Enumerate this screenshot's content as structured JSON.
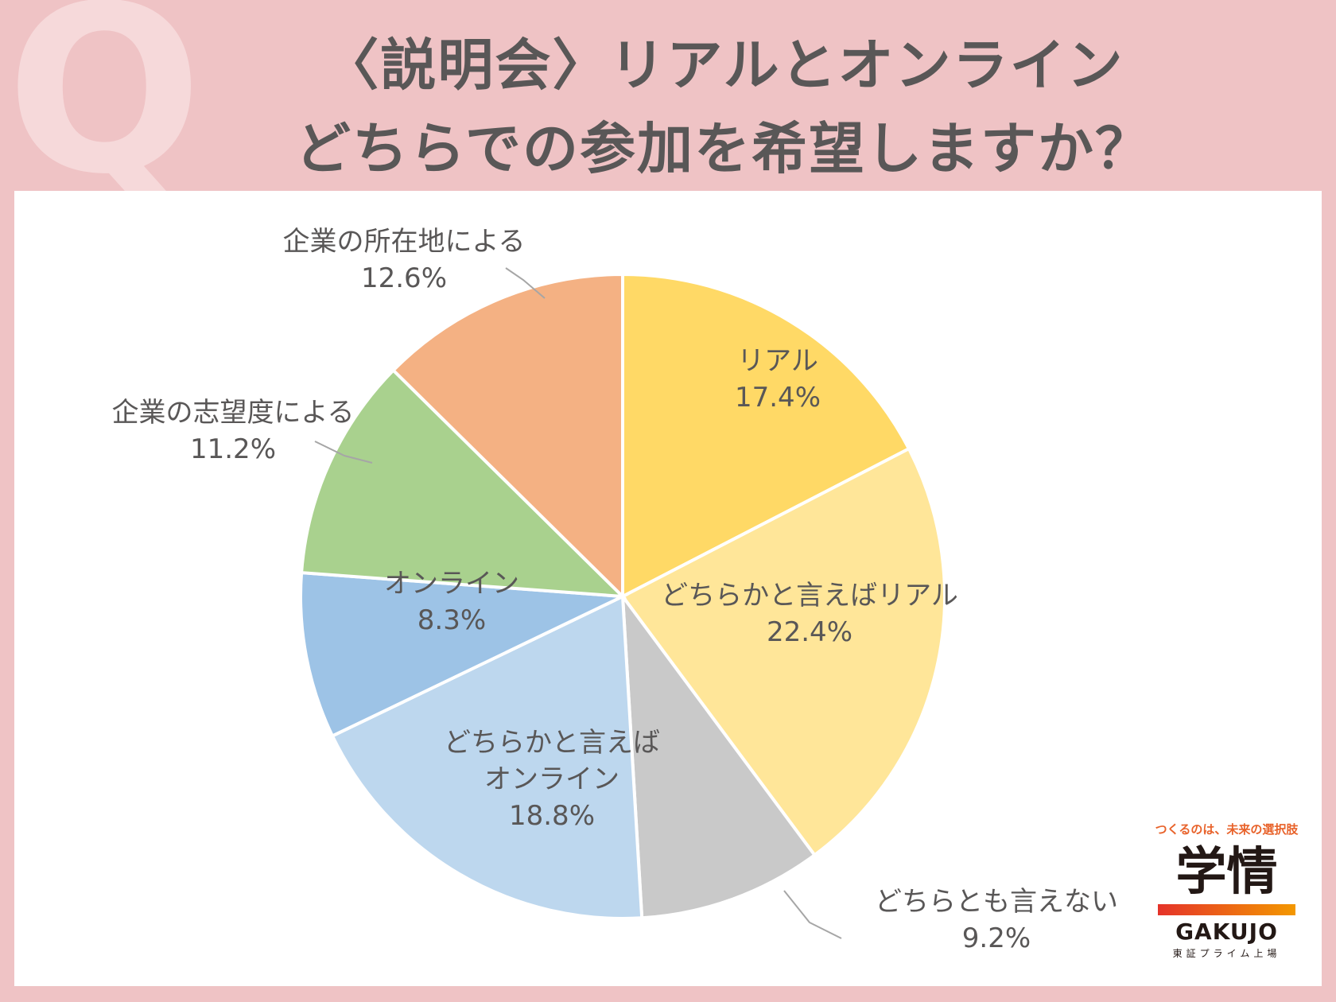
{
  "header": {
    "q_mark": "Q",
    "title_line1": "〈説明会〉リアルとオンライン",
    "title_line2": "どちらでの参加を希望しますか？"
  },
  "chart_data": {
    "type": "pie",
    "title": "〈説明会〉リアルとオンライン どちらでの参加を希望しますか？",
    "start_angle_deg": 0,
    "direction": "clockwise",
    "slices": [
      {
        "label": [
          "リアル"
        ],
        "value": 17.4,
        "display": "17.4%",
        "color": "#ffd966",
        "label_position": "inside"
      },
      {
        "label": [
          "どちらかと言えばリアル"
        ],
        "value": 22.4,
        "display": "22.4%",
        "color": "#ffe699",
        "label_position": "inside"
      },
      {
        "label": [
          "どちらとも言えない"
        ],
        "value": 9.2,
        "display": "9.2%",
        "color": "#c9c9c9",
        "label_position": "outside"
      },
      {
        "label": [
          "どちらかと言えば",
          "オンライン"
        ],
        "value": 18.8,
        "display": "18.8%",
        "color": "#bdd7ee",
        "label_position": "inside"
      },
      {
        "label": [
          "オンライン"
        ],
        "value": 8.3,
        "display": "8.3%",
        "color": "#9dc3e6",
        "label_position": "inside"
      },
      {
        "label": [
          "企業の志望度による"
        ],
        "value": 11.2,
        "display": "11.2%",
        "color": "#a9d18e",
        "label_position": "outside"
      },
      {
        "label": [
          "企業の所在地による"
        ],
        "value": 12.6,
        "display": "12.6%",
        "color": "#f4b183",
        "label_position": "outside"
      }
    ],
    "label_color": "#595757",
    "leader_line_color": "#a6a6a6"
  },
  "logo": {
    "tagline": "つくるのは、未来の選択肢",
    "brand": "学情",
    "brand_en": "GAKUJO",
    "listing": "東証プライム上場"
  }
}
